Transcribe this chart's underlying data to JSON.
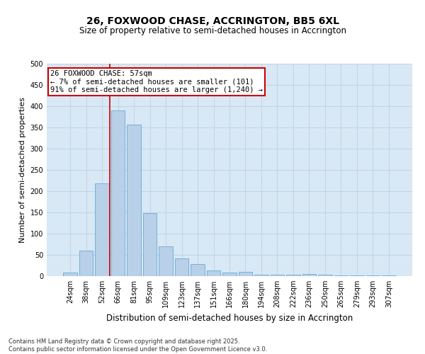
{
  "title": "26, FOXWOOD CHASE, ACCRINGTON, BB5 6XL",
  "subtitle": "Size of property relative to semi-detached houses in Accrington",
  "xlabel": "Distribution of semi-detached houses by size in Accrington",
  "ylabel": "Number of semi-detached properties",
  "categories": [
    "24sqm",
    "38sqm",
    "52sqm",
    "66sqm",
    "81sqm",
    "95sqm",
    "109sqm",
    "123sqm",
    "137sqm",
    "151sqm",
    "166sqm",
    "180sqm",
    "194sqm",
    "208sqm",
    "222sqm",
    "236sqm",
    "250sqm",
    "265sqm",
    "279sqm",
    "293sqm",
    "307sqm"
  ],
  "values": [
    8,
    60,
    219,
    390,
    356,
    148,
    70,
    42,
    29,
    13,
    8,
    10,
    4,
    4,
    3,
    5,
    3,
    1,
    1,
    1,
    1
  ],
  "bar_color": "#b8d0e8",
  "bar_edge_color": "#6aaad4",
  "vline_color": "#cc0000",
  "vline_x": 2.5,
  "annotation_text": "26 FOXWOOD CHASE: 57sqm\n← 7% of semi-detached houses are smaller (101)\n91% of semi-detached houses are larger (1,240) →",
  "annotation_box_color": "#ffffff",
  "annotation_box_edge": "#cc0000",
  "annotation_fontsize": 7.5,
  "ylim": [
    0,
    500
  ],
  "yticks": [
    0,
    50,
    100,
    150,
    200,
    250,
    300,
    350,
    400,
    450,
    500
  ],
  "grid_color": "#c0d4e8",
  "bg_color": "#d8e8f4",
  "footnote": "Contains HM Land Registry data © Crown copyright and database right 2025.\nContains public sector information licensed under the Open Government Licence v3.0.",
  "title_fontsize": 10,
  "subtitle_fontsize": 8.5,
  "ylabel_fontsize": 8,
  "xlabel_fontsize": 8.5,
  "footnote_fontsize": 6,
  "tick_fontsize": 7
}
